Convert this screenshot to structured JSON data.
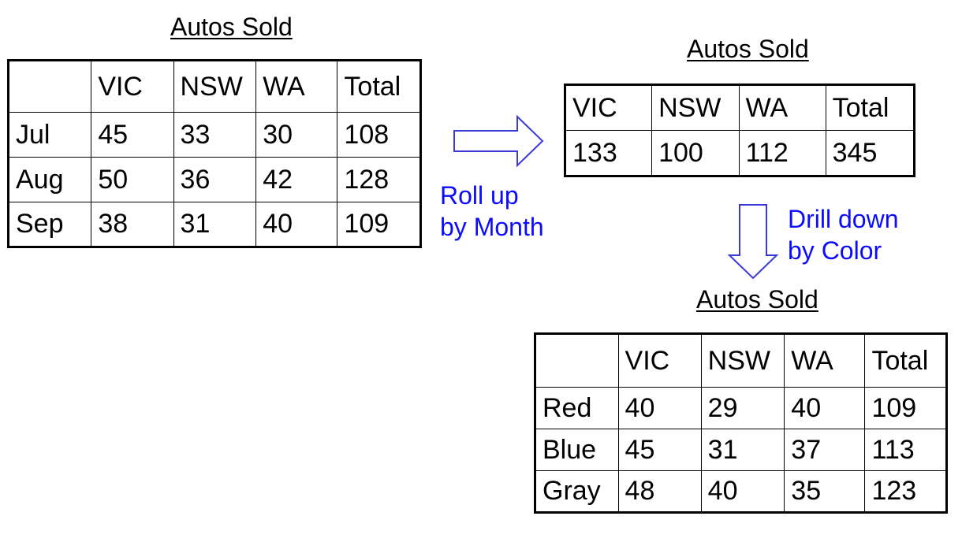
{
  "colors": {
    "accent": "#0b0bff",
    "arrow_stroke": "#3a3ad6",
    "text": "#000000"
  },
  "table_monthly": {
    "title": "Autos Sold",
    "columns": [
      "",
      "VIC",
      "NSW",
      "WA",
      "Total"
    ],
    "rows": [
      [
        "Jul",
        "45",
        "33",
        "30",
        "108"
      ],
      [
        "Aug",
        "50",
        "36",
        "42",
        "128"
      ],
      [
        "Sep",
        "38",
        "31",
        "40",
        "109"
      ]
    ]
  },
  "table_totals": {
    "title": "Autos Sold",
    "columns": [
      "VIC",
      "NSW",
      "WA",
      "Total"
    ],
    "rows": [
      [
        "133",
        "100",
        "112",
        "345"
      ]
    ]
  },
  "table_by_color": {
    "title": "Autos Sold",
    "columns": [
      "",
      "VIC",
      "NSW",
      "WA",
      "Total"
    ],
    "rows": [
      [
        "Red",
        "40",
        "29",
        "40",
        "109"
      ],
      [
        "Blue",
        "45",
        "31",
        "37",
        "113"
      ],
      [
        "Gray",
        "48",
        "40",
        "35",
        "123"
      ]
    ]
  },
  "operations": {
    "roll_up": {
      "line1": "Roll up",
      "line2": "by Month",
      "icon": "arrow-right-icon"
    },
    "drill_down": {
      "line1": "Drill down",
      "line2": "by Color",
      "icon": "arrow-down-icon"
    }
  }
}
